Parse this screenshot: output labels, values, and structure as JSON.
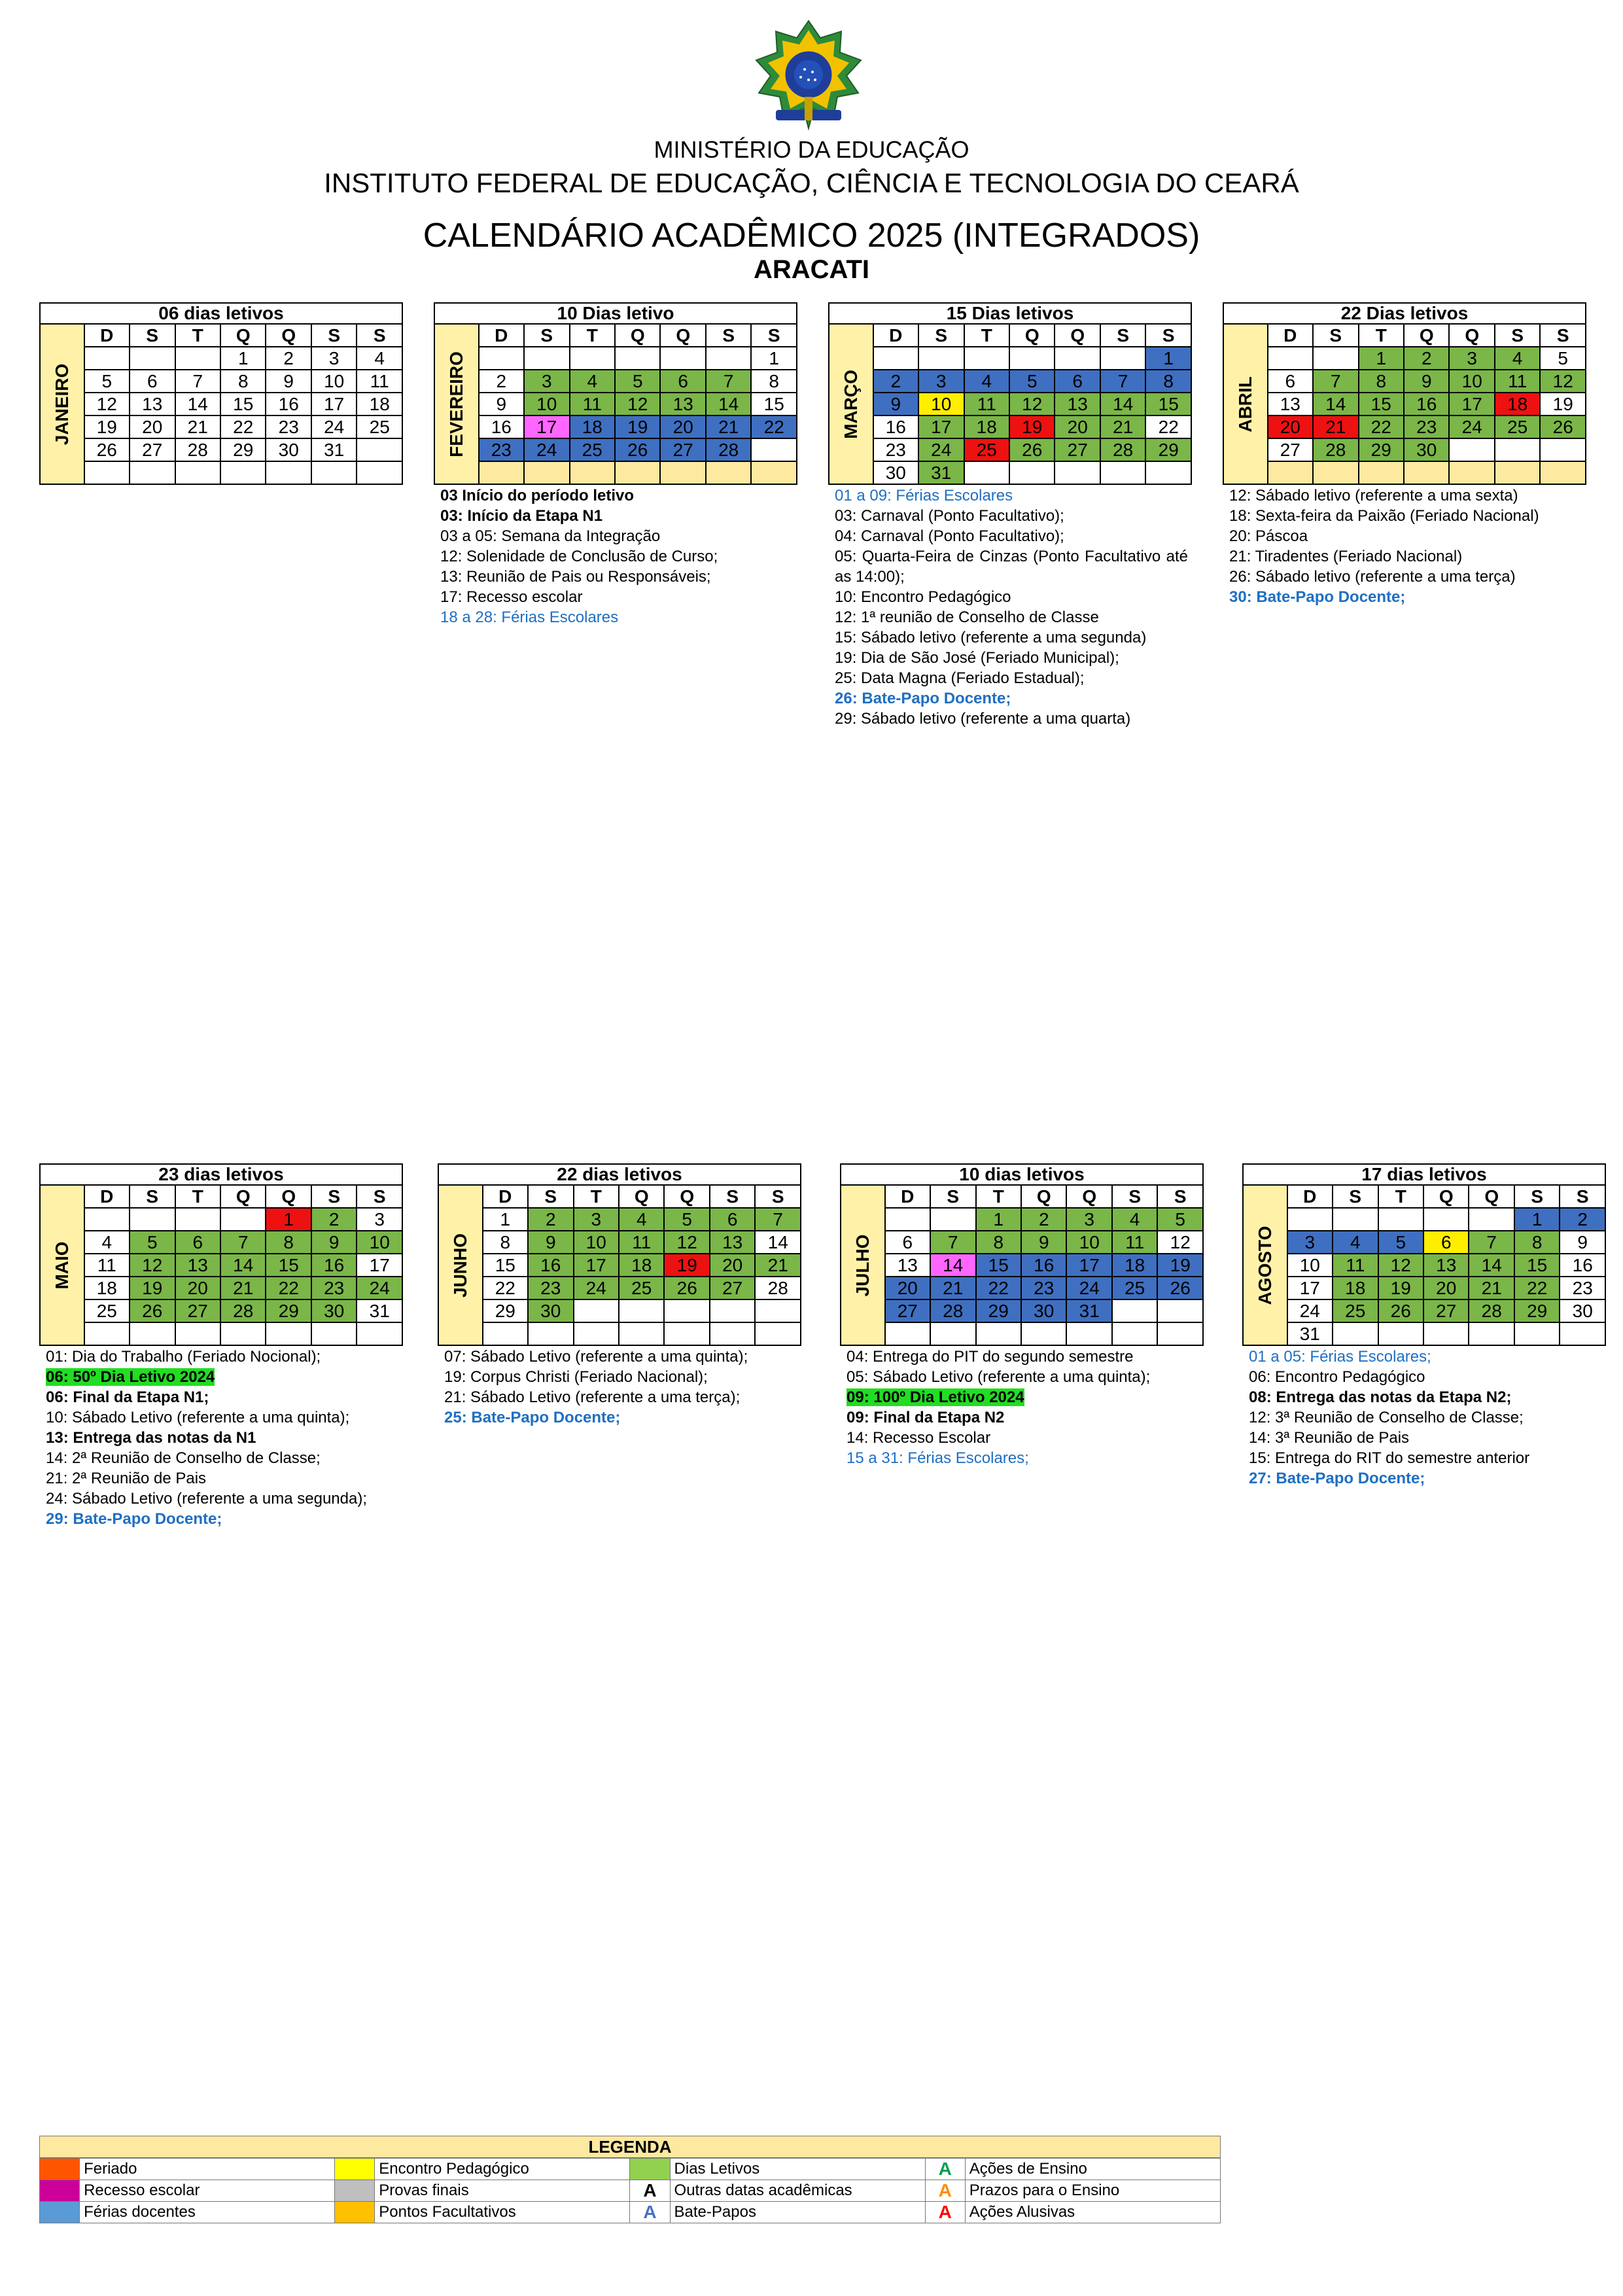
{
  "header": {
    "ministry": "MINISTÉRIO DA EDUCAÇÃO",
    "institute": "INSTITUTO FEDERAL DE EDUCAÇÃO, CIÊNCIA E TECNOLOGIA DO CEARÁ",
    "calendar_title": "CALENDÁRIO ACADÊMICO 2025 (INTEGRADOS)",
    "campus": "ARACATI"
  },
  "weekday_headers": [
    "D",
    "S",
    "T",
    "Q",
    "Q",
    "S",
    "S"
  ],
  "colors": {
    "g": "#7ab648",
    "b": "#3f6fc0",
    "r": "#ee1111",
    "p": "#ff66ff",
    "y": "#ffee00",
    "lg": "#fde9a0",
    "o": "#ffc000"
  },
  "months": [
    {
      "key": "jan",
      "name": "JANEIRO",
      "letivos": "06 dias letivos",
      "rows": [
        [
          "",
          "",
          "",
          "1",
          "2",
          "3",
          "4"
        ],
        [
          "5",
          "6",
          "7",
          "8",
          "9",
          "10",
          "11"
        ],
        [
          "12",
          "13",
          "14",
          "15",
          "16",
          "17",
          "18"
        ],
        [
          "19",
          "20",
          "21",
          "22",
          "23",
          "24",
          "25"
        ],
        [
          "26",
          "27",
          "28",
          "29",
          "30",
          "31",
          ""
        ],
        [
          "",
          "",
          "",
          "",
          "",
          "",
          ""
        ]
      ],
      "colors": [
        [
          "",
          "",
          "",
          "",
          "",
          "",
          ""
        ],
        [
          "",
          "",
          "",
          "",
          "",
          "",
          ""
        ],
        [
          "",
          "",
          "",
          "",
          "",
          "",
          ""
        ],
        [
          "",
          "",
          "",
          "",
          "",
          "",
          ""
        ],
        [
          "",
          "",
          "",
          "",
          "",
          "",
          ""
        ],
        [
          "",
          "",
          "",
          "",
          "",
          "",
          ""
        ]
      ],
      "notes": []
    },
    {
      "key": "fev",
      "name": "FEVEREIRO",
      "letivos": "10 Dias letivo",
      "rows": [
        [
          "",
          "",
          "",
          "",
          "",
          "",
          "1"
        ],
        [
          "2",
          "3",
          "4",
          "5",
          "6",
          "7",
          "8"
        ],
        [
          "9",
          "10",
          "11",
          "12",
          "13",
          "14",
          "15"
        ],
        [
          "16",
          "17",
          "18",
          "19",
          "20",
          "21",
          "22"
        ],
        [
          "23",
          "24",
          "25",
          "26",
          "27",
          "28",
          ""
        ],
        [
          "",
          "",
          "",
          "",
          "",
          "",
          ""
        ]
      ],
      "colors": [
        [
          "",
          "",
          "",
          "",
          "",
          "",
          ""
        ],
        [
          "",
          "g",
          "g",
          "g",
          "g",
          "g",
          ""
        ],
        [
          "",
          "g",
          "g",
          "g",
          "g",
          "g",
          ""
        ],
        [
          "",
          "p",
          "b",
          "b",
          "b",
          "b",
          "b"
        ],
        [
          "b",
          "b",
          "b",
          "b",
          "b",
          "b",
          ""
        ],
        [
          "",
          "",
          "",
          "",
          "",
          "",
          ""
        ]
      ],
      "notes": [
        {
          "t": "03 Início do período letivo",
          "s": "bold"
        },
        {
          "t": "03: Início da Etapa N1",
          "s": "bold"
        },
        {
          "t": "03 a 05: Semana da Integração",
          "s": ""
        },
        {
          "t": "12: Solenidade de Conclusão de Curso;",
          "s": ""
        },
        {
          "t": "13: Reunião de Pais ou Responsáveis;",
          "s": ""
        },
        {
          "t": "17: Recesso escolar",
          "s": ""
        },
        {
          "t": "18 a 28: Férias Escolares",
          "s": "blue"
        }
      ]
    },
    {
      "key": "mar",
      "name": "MARÇO",
      "letivos": "15 Dias letivos",
      "rows": [
        [
          "",
          "",
          "",
          "",
          "",
          "",
          "1"
        ],
        [
          "2",
          "3",
          "4",
          "5",
          "6",
          "7",
          "8"
        ],
        [
          "9",
          "10",
          "11",
          "12",
          "13",
          "14",
          "15"
        ],
        [
          "16",
          "17",
          "18",
          "19",
          "20",
          "21",
          "22"
        ],
        [
          "23",
          "24",
          "25",
          "26",
          "27",
          "28",
          "29"
        ],
        [
          "30",
          "31",
          "",
          "",
          "",
          "",
          ""
        ]
      ],
      "colors": [
        [
          "",
          "",
          "",
          "",
          "",
          "",
          "b"
        ],
        [
          "b",
          "b",
          "b",
          "b",
          "b",
          "b",
          "b"
        ],
        [
          "b",
          "y",
          "g",
          "g",
          "g",
          "g",
          "g"
        ],
        [
          "",
          "g",
          "g",
          "r",
          "g",
          "g",
          ""
        ],
        [
          "",
          "g",
          "r",
          "g",
          "g",
          "g",
          "g"
        ],
        [
          "",
          "g",
          "",
          "",
          "",
          "",
          ""
        ]
      ],
      "notes": [
        {
          "t": "01 a 09: Férias Escolares",
          "s": "blue"
        },
        {
          "t": "03: Carnaval (Ponto Facultativo);",
          "s": ""
        },
        {
          "t": "04: Carnaval (Ponto Facultativo);",
          "s": ""
        },
        {
          "t": "05: Quarta-Feira de Cinzas (Ponto Facultativo até as 14:00);",
          "s": "just"
        },
        {
          "t": "10: Encontro Pedagógico",
          "s": ""
        },
        {
          "t": "12: 1ª reunião de Conselho de Classe",
          "s": ""
        },
        {
          "t": "15: Sábado letivo (referente a uma segunda)",
          "s": ""
        },
        {
          "t": "19: Dia de São José (Feriado Municipal);",
          "s": ""
        },
        {
          "t": "25: Data Magna (Feriado Estadual);",
          "s": ""
        },
        {
          "t": "26: Bate-Papo Docente;",
          "s": "bbold"
        },
        {
          "t": "29: Sábado letivo (referente a uma quarta)",
          "s": ""
        }
      ]
    },
    {
      "key": "abr",
      "name": "ABRIL",
      "letivos": "22 Dias letivos",
      "rows": [
        [
          "",
          "",
          "1",
          "2",
          "3",
          "4",
          "5"
        ],
        [
          "6",
          "7",
          "8",
          "9",
          "10",
          "11",
          "12"
        ],
        [
          "13",
          "14",
          "15",
          "16",
          "17",
          "18",
          "19"
        ],
        [
          "20",
          "21",
          "22",
          "23",
          "24",
          "25",
          "26"
        ],
        [
          "27",
          "28",
          "29",
          "30",
          "",
          "",
          ""
        ],
        [
          "",
          "",
          "",
          "",
          "",
          "",
          ""
        ]
      ],
      "colors": [
        [
          "",
          "",
          "g",
          "g",
          "g",
          "g",
          ""
        ],
        [
          "",
          "g",
          "g",
          "g",
          "g",
          "g",
          "g"
        ],
        [
          "",
          "g",
          "g",
          "g",
          "g",
          "r",
          ""
        ],
        [
          "r",
          "r",
          "g",
          "g",
          "g",
          "g",
          "g"
        ],
        [
          "",
          "g",
          "g",
          "g",
          "",
          "",
          ""
        ],
        [
          "",
          "",
          "",
          "",
          "",
          "",
          ""
        ]
      ],
      "notes": [
        {
          "t": "12: Sábado letivo (referente a uma sexta)",
          "s": ""
        },
        {
          "t": "18: Sexta-feira da Paixão (Feriado Nacional)",
          "s": ""
        },
        {
          "t": "20: Páscoa",
          "s": ""
        },
        {
          "t": "21: Tiradentes (Feriado Nacional)",
          "s": ""
        },
        {
          "t": "26: Sábado letivo (referente a uma terça)",
          "s": ""
        },
        {
          "t": "30: Bate-Papo Docente;",
          "s": "bbold"
        }
      ]
    },
    {
      "key": "mai",
      "name": "MAIO",
      "letivos": "23 dias letivos",
      "rows": [
        [
          "",
          "",
          "",
          "",
          "1",
          "2",
          "3"
        ],
        [
          "4",
          "5",
          "6",
          "7",
          "8",
          "9",
          "10"
        ],
        [
          "11",
          "12",
          "13",
          "14",
          "15",
          "16",
          "17"
        ],
        [
          "18",
          "19",
          "20",
          "21",
          "22",
          "23",
          "24"
        ],
        [
          "25",
          "26",
          "27",
          "28",
          "29",
          "30",
          "31"
        ],
        [
          "",
          "",
          "",
          "",
          "",
          "",
          ""
        ]
      ],
      "colors": [
        [
          "",
          "",
          "",
          "",
          "r",
          "g",
          ""
        ],
        [
          "",
          "g",
          "g",
          "g",
          "g",
          "g",
          "g"
        ],
        [
          "",
          "g",
          "g",
          "g",
          "g",
          "g",
          ""
        ],
        [
          "",
          "g",
          "g",
          "g",
          "g",
          "g",
          "g"
        ],
        [
          "",
          "g",
          "g",
          "g",
          "g",
          "g",
          ""
        ],
        [
          "",
          "",
          "",
          "",
          "",
          "",
          ""
        ]
      ],
      "notes": [
        {
          "t": "01: Dia do Trabalho (Feriado Nocional);",
          "s": ""
        },
        {
          "t": "06: 50º Dia Letivo 2024",
          "s": "hl"
        },
        {
          "t": "06: Final da Etapa N1;",
          "s": "bold"
        },
        {
          "t": "10: Sábado Letivo (referente a uma quinta);",
          "s": ""
        },
        {
          "t": "13: Entrega das notas da N1",
          "s": "bold"
        },
        {
          "t": "14: 2ª Reunião de Conselho de Classe;",
          "s": ""
        },
        {
          "t": "21: 2ª Reunião de Pais",
          "s": ""
        },
        {
          "t": "24: Sábado Letivo (referente a uma segunda);",
          "s": "just"
        },
        {
          "t": "29: Bate-Papo Docente;",
          "s": "bbold"
        }
      ]
    },
    {
      "key": "jun",
      "name": "JUNHO",
      "letivos": "22 dias letivos",
      "rows": [
        [
          "1",
          "2",
          "3",
          "4",
          "5",
          "6",
          "7"
        ],
        [
          "8",
          "9",
          "10",
          "11",
          "12",
          "13",
          "14"
        ],
        [
          "15",
          "16",
          "17",
          "18",
          "19",
          "20",
          "21"
        ],
        [
          "22",
          "23",
          "24",
          "25",
          "26",
          "27",
          "28"
        ],
        [
          "29",
          "30",
          "",
          "",
          "",
          "",
          ""
        ],
        [
          "",
          "",
          "",
          "",
          "",
          "",
          ""
        ]
      ],
      "colors": [
        [
          "",
          "g",
          "g",
          "g",
          "g",
          "g",
          "g"
        ],
        [
          "",
          "g",
          "g",
          "g",
          "g",
          "g",
          ""
        ],
        [
          "",
          "g",
          "g",
          "g",
          "r",
          "g",
          "g"
        ],
        [
          "",
          "g",
          "g",
          "g",
          "g",
          "g",
          ""
        ],
        [
          "",
          "g",
          "",
          "",
          "",
          "",
          ""
        ],
        [
          "",
          "",
          "",
          "",
          "",
          "",
          ""
        ]
      ],
      "notes": [
        {
          "t": "07: Sábado Letivo (referente a uma quinta);",
          "s": ""
        },
        {
          "t": "19: Corpus Christi (Feriado Nacional);",
          "s": ""
        },
        {
          "t": "21: Sábado Letivo (referente a uma terça);",
          "s": ""
        },
        {
          "t": "25: Bate-Papo Docente;",
          "s": "bbold"
        }
      ]
    },
    {
      "key": "jul",
      "name": "JULHO",
      "letivos": "10 dias letivos",
      "rows": [
        [
          "",
          "",
          "1",
          "2",
          "3",
          "4",
          "5"
        ],
        [
          "6",
          "7",
          "8",
          "9",
          "10",
          "11",
          "12"
        ],
        [
          "13",
          "14",
          "15",
          "16",
          "17",
          "18",
          "19"
        ],
        [
          "20",
          "21",
          "22",
          "23",
          "24",
          "25",
          "26"
        ],
        [
          "27",
          "28",
          "29",
          "30",
          "31",
          "",
          ""
        ],
        [
          "",
          "",
          "",
          "",
          "",
          "",
          ""
        ]
      ],
      "colors": [
        [
          "",
          "",
          "g",
          "g",
          "g",
          "g",
          "g"
        ],
        [
          "",
          "g",
          "g",
          "g",
          "g",
          "g",
          ""
        ],
        [
          "",
          "p",
          "b",
          "b",
          "b",
          "b",
          "b"
        ],
        [
          "b",
          "b",
          "b",
          "b",
          "b",
          "b",
          "b"
        ],
        [
          "b",
          "b",
          "b",
          "b",
          "b",
          "",
          ""
        ],
        [
          "",
          "",
          "",
          "",
          "",
          "",
          ""
        ]
      ],
      "notes": [
        {
          "t": "04: Entrega do PIT do segundo semestre",
          "s": ""
        },
        {
          "t": "05: Sábado Letivo (referente a uma quinta);",
          "s": ""
        },
        {
          "t": "09: 100º Dia Letivo 2024",
          "s": "hl"
        },
        {
          "t": "09: Final da Etapa N2",
          "s": "bold"
        },
        {
          "t": "14: Recesso Escolar",
          "s": ""
        },
        {
          "t": "15 a 31: Férias Escolares;",
          "s": "blue"
        }
      ]
    },
    {
      "key": "ago",
      "name": "AGOSTO",
      "letivos": "17 dias letivos",
      "rows": [
        [
          "",
          "",
          "",
          "",
          "",
          "1",
          "2"
        ],
        [
          "3",
          "4",
          "5",
          "6",
          "7",
          "8",
          "9"
        ],
        [
          "10",
          "11",
          "12",
          "13",
          "14",
          "15",
          "16"
        ],
        [
          "17",
          "18",
          "19",
          "20",
          "21",
          "22",
          "23"
        ],
        [
          "24",
          "25",
          "26",
          "27",
          "28",
          "29",
          "30"
        ],
        [
          "31",
          "",
          "",
          "",
          "",
          "",
          ""
        ]
      ],
      "colors": [
        [
          "",
          "",
          "",
          "",
          "",
          "b",
          "b"
        ],
        [
          "b",
          "b",
          "b",
          "y",
          "g",
          "g",
          ""
        ],
        [
          "",
          "g",
          "g",
          "g",
          "g",
          "g",
          ""
        ],
        [
          "",
          "g",
          "g",
          "g",
          "g",
          "g",
          ""
        ],
        [
          "",
          "g",
          "g",
          "g",
          "g",
          "g",
          ""
        ],
        [
          "",
          "",
          "",
          "",
          "",
          "",
          ""
        ]
      ],
      "notes": [
        {
          "t": "01 a 05: Férias Escolares;",
          "s": "blue"
        },
        {
          "t": "06: Encontro Pedagógico",
          "s": ""
        },
        {
          "t": "08: Entrega das notas da Etapa N2;",
          "s": "bold"
        },
        {
          "t": "12: 3ª Reunião de Conselho de Classe;",
          "s": ""
        },
        {
          "t": "14: 3ª Reunião de Pais",
          "s": ""
        },
        {
          "t": "15: Entrega do RIT do semestre anterior",
          "s": ""
        },
        {
          "t": "27: Bate-Papo Docente;",
          "s": "bbold"
        }
      ]
    }
  ],
  "legend": {
    "title": "LEGENDA",
    "rows": [
      [
        {
          "color": "#ff5500",
          "label": "Feriado"
        },
        {
          "color": "#ffff00",
          "label": "Encontro Pedagógico"
        },
        {
          "color": "#92d050",
          "label": "Dias Letivos"
        },
        {
          "letter": "A",
          "letter_color": "#00a050",
          "label": "Ações de Ensino"
        }
      ],
      [
        {
          "color": "#cc0099",
          "label": "Recesso escolar"
        },
        {
          "color": "#bfbfbf",
          "label": "Provas finais"
        },
        {
          "letter": "A",
          "letter_color": "#000000",
          "label": "Outras datas acadêmicas"
        },
        {
          "letter": "A",
          "letter_color": "#ff8c00",
          "label": "Prazos para o Ensino"
        }
      ],
      [
        {
          "color": "#5b9bd5",
          "label": "Férias docentes"
        },
        {
          "color": "#ffc000",
          "label": "Pontos Facultativos"
        },
        {
          "letter": "A",
          "letter_color": "#4472c4",
          "label": "Bate-Papos"
        },
        {
          "letter": "A",
          "letter_color": "#ff0000",
          "label": "Ações Alusivas"
        }
      ]
    ]
  }
}
